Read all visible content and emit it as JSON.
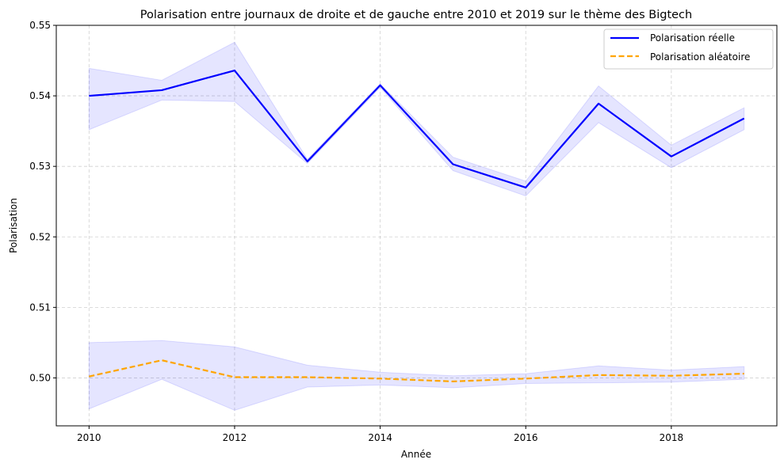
{
  "chart_data": {
    "type": "line",
    "title": "Polarisation entre journaux de droite et de gauche entre 2010 et 2019 sur le thème des Bigtech",
    "xlabel": "Année",
    "ylabel": "Polarisation",
    "x": [
      2010,
      2011,
      2012,
      2013,
      2014,
      2015,
      2016,
      2017,
      2018,
      2019
    ],
    "xlim": [
      2009.55,
      2019.45
    ],
    "ylim": [
      0.4932,
      0.55
    ],
    "xticks": [
      2010,
      2012,
      2014,
      2016,
      2018
    ],
    "xtick_labels": [
      "2010",
      "2012",
      "2014",
      "2016",
      "2018"
    ],
    "yticks": [
      0.5,
      0.51,
      0.52,
      0.53,
      0.54,
      0.55
    ],
    "ytick_labels": [
      "0.50",
      "0.51",
      "0.52",
      "0.53",
      "0.54",
      "0.55"
    ],
    "grid": true,
    "legend_position": "top-right",
    "series": [
      {
        "name": "Polarisation réelle",
        "color": "#0000ff",
        "style": "solid",
        "values": [
          0.54,
          0.5408,
          0.5436,
          0.5307,
          0.5415,
          0.5303,
          0.527,
          0.5389,
          0.5314,
          0.5368
        ],
        "band_lower": [
          0.5352,
          0.5394,
          0.5392,
          0.5304,
          0.5412,
          0.5294,
          0.5258,
          0.5362,
          0.5298,
          0.5352
        ],
        "band_upper": [
          0.5439,
          0.5422,
          0.5476,
          0.531,
          0.5417,
          0.5313,
          0.5279,
          0.5414,
          0.533,
          0.5383
        ],
        "band_color": "#0000ff"
      },
      {
        "name": "Polarisation aléatoire",
        "color": "#ffa500",
        "style": "dashed",
        "values": [
          0.5002,
          0.5025,
          0.5001,
          0.5001,
          0.4999,
          0.4995,
          0.4999,
          0.5004,
          0.5003,
          0.5006
        ],
        "band_lower": [
          0.4956,
          0.4998,
          0.4954,
          0.4987,
          0.499,
          0.4986,
          0.4992,
          0.4993,
          0.4994,
          0.4998
        ],
        "band_upper": [
          0.505,
          0.5053,
          0.5044,
          0.5018,
          0.5008,
          0.5003,
          0.5006,
          0.5017,
          0.5011,
          0.5016
        ],
        "band_color": "#0000ff"
      }
    ]
  }
}
